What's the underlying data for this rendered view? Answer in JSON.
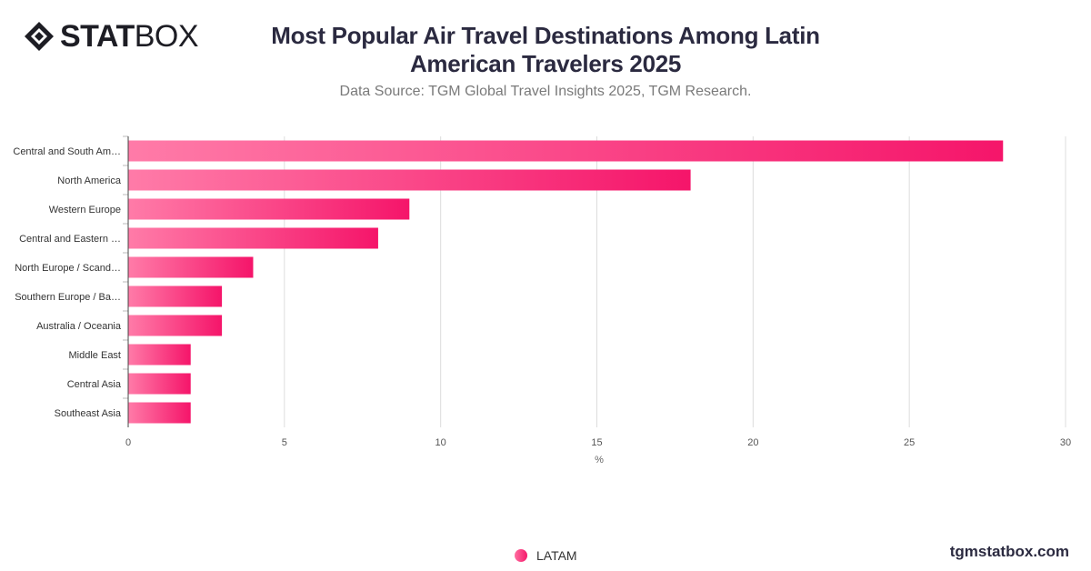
{
  "brand": {
    "logo_bold": "STAT",
    "logo_light": "BOX"
  },
  "header": {
    "title": "Most Popular Air Travel Destinations Among Latin American Travelers 2025",
    "subtitle": "Data Source: TGM Global Travel Insights 2025, TGM Research."
  },
  "footer": {
    "site": "tgmstatbox.com"
  },
  "colors": {
    "bar_start": "#ff7ba8",
    "bar_end": "#f5156a",
    "grid": "#dcdcdc"
  },
  "chart_data": {
    "type": "bar",
    "orientation": "horizontal",
    "title": "Most Popular Air Travel Destinations Among Latin American Travelers 2025",
    "subtitle": "Data Source: TGM Global Travel Insights 2025, TGM Research.",
    "categories": [
      "Central and South Am…",
      "North America",
      "Western Europe",
      "Central and Eastern …",
      "North Europe / Scand…",
      "Southern Europe / Ba…",
      "Australia / Oceania",
      "Middle East",
      "Central Asia",
      "Southeast Asia"
    ],
    "series": [
      {
        "name": "LATAM",
        "values": [
          28,
          18,
          9,
          8,
          4,
          3,
          3,
          2,
          2,
          2
        ]
      }
    ],
    "xlabel": "%",
    "xlim": [
      0,
      30
    ],
    "xticks": [
      0,
      5,
      10,
      15,
      20,
      25,
      30
    ],
    "grid": true,
    "legend_position": "bottom"
  }
}
